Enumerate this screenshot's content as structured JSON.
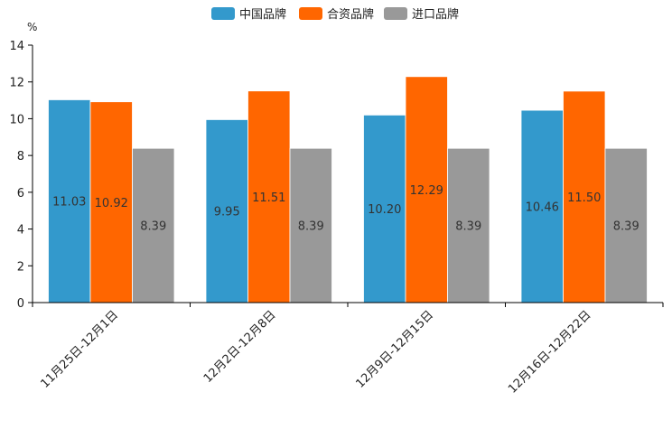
{
  "chart_data": {
    "type": "bar",
    "unit": "%",
    "categories": [
      "11月25日-12月1日",
      "12月2日-12月8日",
      "12月9日-12月15日",
      "12月16日-12月22日"
    ],
    "series": [
      {
        "name": "中国品牌",
        "color": "#3399cc",
        "values": [
          11.03,
          9.95,
          10.2,
          10.46
        ]
      },
      {
        "name": "合资品牌",
        "color": "#ff6600",
        "values": [
          10.92,
          11.51,
          12.29,
          11.5
        ]
      },
      {
        "name": "进口品牌",
        "color": "#999999",
        "values": [
          8.39,
          8.39,
          8.39,
          8.39
        ]
      }
    ],
    "ylim": [
      0,
      14
    ],
    "yticks": [
      0,
      2,
      4,
      6,
      8,
      10,
      12,
      14
    ],
    "legend_position": "top-center",
    "grid": false
  }
}
